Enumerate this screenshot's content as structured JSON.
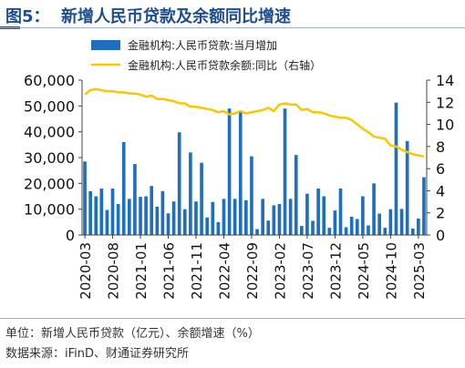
{
  "header": {
    "title": "图5：  新增人民币贷款及余额同比增速"
  },
  "footer": {
    "unit": "单位：新增人民币贷款（亿元）、余额增速（%）",
    "source": "数据来源：iFinD、财通证券研究所"
  },
  "chart_data": {
    "type": "bar",
    "legend_position": "top",
    "series": [
      {
        "name": "金融机构:人民币贷款:当月增加",
        "type": "bar",
        "axis": "left",
        "color": "#1f6fbf",
        "values": [
          28500,
          17000,
          15000,
          18000,
          9700,
          18000,
          12000,
          36000,
          14000,
          27500,
          14800,
          15000,
          19000,
          11000,
          17000,
          8400,
          13000,
          39800,
          10000,
          32000,
          13000,
          28000,
          6800,
          12800,
          5000,
          14000,
          49000,
          14000,
          48000,
          13500,
          30500,
          2300,
          14000,
          5600,
          11500,
          12000,
          49000,
          14000,
          31000,
          3500,
          16000,
          5500,
          18000,
          15000,
          2800,
          9500,
          18000,
          3000,
          7100,
          6200,
          15000,
          3700,
          20000,
          8300,
          2800,
          10000,
          51300,
          10100,
          36400,
          2500,
          6400,
          22400
        ]
      },
      {
        "name": "金融机构:人民币贷款余额:同比（右轴）",
        "type": "line",
        "axis": "right",
        "color": "#f6c800",
        "values": [
          12.7,
          13.1,
          13.2,
          13.1,
          13.0,
          13.0,
          12.9,
          12.9,
          12.8,
          12.8,
          12.7,
          12.5,
          12.6,
          12.3,
          12.3,
          12.2,
          12.1,
          11.9,
          11.9,
          11.6,
          11.6,
          11.5,
          11.4,
          11.3,
          11.1,
          11.2,
          10.9,
          11.0,
          11.2,
          11.0,
          11.1,
          11.2,
          11.3,
          11.5,
          11.2,
          11.8,
          11.9,
          11.8,
          11.8,
          11.3,
          11.4,
          11.1,
          11.1,
          11.0,
          10.8,
          10.7,
          10.6,
          10.6,
          10.4,
          10.0,
          9.6,
          9.3,
          8.9,
          8.8,
          8.7,
          8.1,
          8.0,
          7.7,
          7.5,
          7.3,
          7.2,
          7.1
        ]
      }
    ],
    "x_tick_labels": [
      "2020-03",
      "2020-08",
      "2021-01",
      "2021-06",
      "2021-11",
      "2022-04",
      "2022-09",
      "2023-02",
      "2023-07",
      "2023-12",
      "2024-05",
      "2024-10",
      "2025-03"
    ],
    "x_tick_every": 5,
    "y_left": {
      "min": 0,
      "max": 60000,
      "ticks": [
        "0",
        "10,000",
        "20,000",
        "30,000",
        "40,000",
        "50,000",
        "60,000"
      ]
    },
    "y_right": {
      "min": 0,
      "max": 14,
      "ticks": [
        "0",
        "2",
        "4",
        "6",
        "8",
        "10",
        "12",
        "14"
      ]
    }
  }
}
